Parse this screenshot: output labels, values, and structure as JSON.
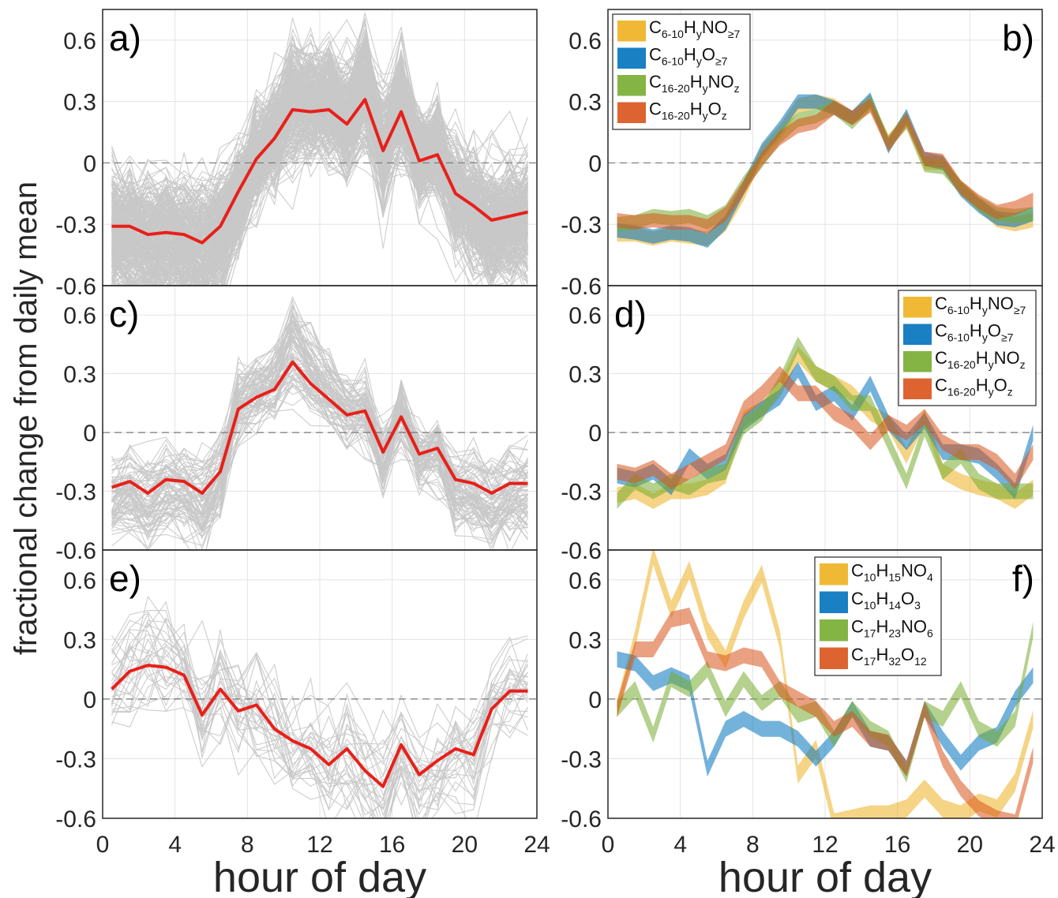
{
  "figure": {
    "ylabel": "fractional change from daily mean",
    "xlabel": "hour of day"
  },
  "axes": {
    "x_ticks": [
      "0",
      "4",
      "8",
      "12",
      "16",
      "20",
      "24"
    ],
    "y_ticks": [
      "-0.6",
      "-0.3",
      "0",
      "0.3",
      "0.6"
    ],
    "xlim": [
      0,
      24
    ],
    "ylim": [
      -0.6,
      0.75
    ]
  },
  "colors": {
    "gray": "#c8c8c8",
    "red": "#e8201a",
    "yellow": "#edb120",
    "blue": "#0072bd",
    "green": "#77ac30",
    "orange": "#d95319"
  },
  "chart_data": [
    {
      "panel": "a)",
      "type": "line",
      "x": [
        0.5,
        1.5,
        2.5,
        3.5,
        4.5,
        5.5,
        6.5,
        7.5,
        8.5,
        9.5,
        10.5,
        11.5,
        12.5,
        13.5,
        14.5,
        15.5,
        16.5,
        17.5,
        18.5,
        19.5,
        20.5,
        21.5,
        22.5,
        23.5
      ],
      "series": [
        {
          "role": "mean",
          "values": [
            -0.31,
            -0.31,
            -0.35,
            -0.34,
            -0.35,
            -0.39,
            -0.31,
            -0.14,
            0.02,
            0.12,
            0.26,
            0.25,
            0.26,
            0.19,
            0.31,
            0.06,
            0.25,
            0.01,
            0.04,
            -0.15,
            -0.21,
            -0.28,
            -0.26,
            -0.24
          ]
        },
        {
          "role": "individual traces",
          "count": 300,
          "spread": 0.18
        }
      ]
    },
    {
      "panel": "b)",
      "type": "area",
      "x": [
        0.5,
        1.5,
        2.5,
        3.5,
        4.5,
        5.5,
        6.5,
        7.5,
        8.5,
        9.5,
        10.5,
        11.5,
        12.5,
        13.5,
        14.5,
        15.5,
        16.5,
        17.5,
        18.5,
        19.5,
        20.5,
        21.5,
        22.5,
        23.5
      ],
      "legend": {
        "placement": "top-left",
        "entries": [
          {
            "text": "C6-10HyNO≥7",
            "parts": [
              [
                "C",
                ""
              ],
              [
                "6-10",
                "sub"
              ],
              [
                "H",
                ""
              ],
              [
                "y",
                "sub"
              ],
              [
                "NO",
                ""
              ],
              [
                "≥7",
                "sub"
              ]
            ]
          },
          {
            "text": "C6-10HyO≥7",
            "parts": [
              [
                "C",
                ""
              ],
              [
                "6-10",
                "sub"
              ],
              [
                "H",
                ""
              ],
              [
                "y",
                "sub"
              ],
              [
                "O",
                ""
              ],
              [
                "≥7",
                "sub"
              ]
            ]
          },
          {
            "text": "C16-20HyNOz",
            "parts": [
              [
                "C",
                ""
              ],
              [
                "16-20",
                "sub"
              ],
              [
                "H",
                ""
              ],
              [
                "y",
                "sub"
              ],
              [
                "NO",
                ""
              ],
              [
                "z",
                "sub"
              ]
            ]
          },
          {
            "text": "C16-20HyOz",
            "parts": [
              [
                "C",
                ""
              ],
              [
                "16-20",
                "sub"
              ],
              [
                "H",
                ""
              ],
              [
                "y",
                "sub"
              ],
              [
                "O",
                ""
              ],
              [
                "z",
                "sub"
              ]
            ]
          }
        ]
      },
      "series": [
        {
          "values": [
            -0.35,
            -0.35,
            -0.37,
            -0.35,
            -0.36,
            -0.37,
            -0.3,
            -0.15,
            0.05,
            0.15,
            0.28,
            0.3,
            0.28,
            0.22,
            0.3,
            0.1,
            0.22,
            0.0,
            0.0,
            -0.12,
            -0.2,
            -0.28,
            -0.3,
            -0.28
          ],
          "width": 0.07
        },
        {
          "values": [
            -0.33,
            -0.34,
            -0.36,
            -0.34,
            -0.35,
            -0.38,
            -0.29,
            -0.12,
            0.06,
            0.17,
            0.3,
            0.3,
            0.27,
            0.22,
            0.31,
            0.08,
            0.23,
            0.02,
            0.0,
            -0.13,
            -0.21,
            -0.27,
            -0.28,
            -0.25
          ],
          "width": 0.07
        },
        {
          "values": [
            -0.3,
            -0.29,
            -0.26,
            -0.27,
            -0.26,
            -0.29,
            -0.24,
            -0.1,
            0.01,
            0.13,
            0.21,
            0.23,
            0.27,
            0.2,
            0.29,
            0.1,
            0.2,
            -0.01,
            -0.02,
            -0.12,
            -0.2,
            -0.25,
            -0.26,
            -0.25
          ],
          "width": 0.07
        },
        {
          "values": [
            -0.28,
            -0.29,
            -0.28,
            -0.29,
            -0.29,
            -0.31,
            -0.25,
            -0.12,
            0.02,
            0.12,
            0.18,
            0.2,
            0.27,
            0.22,
            0.28,
            0.09,
            0.21,
            0.02,
            0.01,
            -0.12,
            -0.19,
            -0.24,
            -0.22,
            -0.18
          ],
          "width": 0.07
        }
      ]
    },
    {
      "panel": "c)",
      "type": "line",
      "x": [
        0.5,
        1.5,
        2.5,
        3.5,
        4.5,
        5.5,
        6.5,
        7.5,
        8.5,
        9.5,
        10.5,
        11.5,
        12.5,
        13.5,
        14.5,
        15.5,
        16.5,
        17.5,
        18.5,
        19.5,
        20.5,
        21.5,
        22.5,
        23.5
      ],
      "series": [
        {
          "role": "mean",
          "values": [
            -0.28,
            -0.25,
            -0.31,
            -0.24,
            -0.25,
            -0.31,
            -0.2,
            0.12,
            0.18,
            0.22,
            0.36,
            0.25,
            0.17,
            0.09,
            0.11,
            -0.1,
            0.08,
            -0.11,
            -0.08,
            -0.24,
            -0.26,
            -0.31,
            -0.26,
            -0.26
          ]
        },
        {
          "role": "individual traces",
          "count": 80,
          "spread": 0.12
        }
      ]
    },
    {
      "panel": "d)",
      "type": "area",
      "x": [
        0.5,
        1.5,
        2.5,
        3.5,
        4.5,
        5.5,
        6.5,
        7.5,
        8.5,
        9.5,
        10.5,
        11.5,
        12.5,
        13.5,
        14.5,
        15.5,
        16.5,
        17.5,
        18.5,
        19.5,
        20.5,
        21.5,
        22.5,
        23.5
      ],
      "legend": {
        "placement": "top-right",
        "entries": [
          {
            "text": "C6-10HyNO≥7",
            "parts": [
              [
                "C",
                ""
              ],
              [
                "6-10",
                "sub"
              ],
              [
                "H",
                ""
              ],
              [
                "y",
                "sub"
              ],
              [
                "NO",
                ""
              ],
              [
                "≥7",
                "sub"
              ]
            ]
          },
          {
            "text": "C6-10HyO≥7",
            "parts": [
              [
                "C",
                ""
              ],
              [
                "6-10",
                "sub"
              ],
              [
                "H",
                ""
              ],
              [
                "y",
                "sub"
              ],
              [
                "O",
                ""
              ],
              [
                "≥7",
                "sub"
              ]
            ]
          },
          {
            "text": "C16-20HyNOz",
            "parts": [
              [
                "C",
                ""
              ],
              [
                "16-20",
                "sub"
              ],
              [
                "H",
                ""
              ],
              [
                "y",
                "sub"
              ],
              [
                "NO",
                ""
              ],
              [
                "z",
                "sub"
              ]
            ]
          },
          {
            "text": "C16-20HyOz",
            "parts": [
              [
                "C",
                ""
              ],
              [
                "16-20",
                "sub"
              ],
              [
                "H",
                ""
              ],
              [
                "y",
                "sub"
              ],
              [
                "O",
                ""
              ],
              [
                "z",
                "sub"
              ]
            ]
          }
        ]
      },
      "series": [
        {
          "values": [
            -0.32,
            -0.3,
            -0.35,
            -0.3,
            -0.3,
            -0.28,
            -0.22,
            0.07,
            0.12,
            0.22,
            0.4,
            0.3,
            0.25,
            0.2,
            0.1,
            0.05,
            -0.12,
            0.08,
            -0.2,
            -0.25,
            -0.28,
            -0.3,
            -0.35,
            -0.28
          ],
          "width": 0.08
        },
        {
          "values": [
            -0.22,
            -0.24,
            -0.2,
            -0.28,
            -0.12,
            -0.2,
            -0.15,
            0.05,
            0.12,
            0.18,
            0.32,
            0.15,
            0.2,
            0.1,
            0.25,
            0.05,
            -0.05,
            0.06,
            -0.1,
            -0.1,
            -0.12,
            -0.2,
            -0.3,
            0.0
          ],
          "width": 0.08
        },
        {
          "values": [
            -0.35,
            -0.25,
            -0.3,
            -0.25,
            -0.28,
            -0.22,
            -0.2,
            0.03,
            0.1,
            0.25,
            0.45,
            0.3,
            0.25,
            0.15,
            0.15,
            -0.05,
            -0.25,
            0.02,
            -0.2,
            -0.12,
            -0.25,
            -0.3,
            -0.3,
            -0.3
          ],
          "width": 0.08
        },
        {
          "values": [
            -0.2,
            -0.22,
            -0.18,
            -0.25,
            -0.2,
            -0.15,
            -0.1,
            0.12,
            0.2,
            0.3,
            0.2,
            0.2,
            0.1,
            0.05,
            -0.05,
            0.05,
            0.0,
            0.08,
            -0.05,
            -0.1,
            -0.1,
            -0.15,
            -0.25,
            -0.1
          ],
          "width": 0.08
        }
      ]
    },
    {
      "panel": "e)",
      "type": "line",
      "x": [
        0.5,
        1.5,
        2.5,
        3.5,
        4.5,
        5.5,
        6.5,
        7.5,
        8.5,
        9.5,
        10.5,
        11.5,
        12.5,
        13.5,
        14.5,
        15.5,
        16.5,
        17.5,
        18.5,
        19.5,
        20.5,
        21.5,
        22.5,
        23.5
      ],
      "series": [
        {
          "role": "mean",
          "values": [
            0.05,
            0.14,
            0.17,
            0.16,
            0.12,
            -0.08,
            0.05,
            -0.06,
            -0.03,
            -0.15,
            -0.21,
            -0.25,
            -0.33,
            -0.25,
            -0.36,
            -0.44,
            -0.23,
            -0.38,
            -0.31,
            -0.25,
            -0.28,
            -0.05,
            0.04,
            0.04
          ]
        },
        {
          "role": "individual traces",
          "count": 30,
          "spread": 0.2
        }
      ]
    },
    {
      "panel": "f)",
      "type": "area",
      "x": [
        0.5,
        1.5,
        2.5,
        3.5,
        4.5,
        5.5,
        6.5,
        7.5,
        8.5,
        9.5,
        10.5,
        11.5,
        12.5,
        13.5,
        14.5,
        15.5,
        16.5,
        17.5,
        18.5,
        19.5,
        20.5,
        21.5,
        22.5,
        23.5
      ],
      "legend": {
        "placement": "top-right",
        "entries": [
          {
            "text": "C10H15NO4",
            "parts": [
              [
                "C",
                ""
              ],
              [
                "10",
                "sub"
              ],
              [
                "H",
                ""
              ],
              [
                "15",
                "sub"
              ],
              [
                "NO",
                ""
              ],
              [
                "4",
                "sub"
              ]
            ]
          },
          {
            "text": "C10H14O3",
            "parts": [
              [
                "C",
                ""
              ],
              [
                "10",
                "sub"
              ],
              [
                "H",
                ""
              ],
              [
                "14",
                "sub"
              ],
              [
                "O",
                ""
              ],
              [
                "3",
                "sub"
              ]
            ]
          },
          {
            "text": "C17H23NO6",
            "parts": [
              [
                "C",
                ""
              ],
              [
                "17",
                "sub"
              ],
              [
                "H",
                ""
              ],
              [
                "23",
                "sub"
              ],
              [
                "NO",
                ""
              ],
              [
                "6",
                "sub"
              ]
            ]
          },
          {
            "text": "C17H32O12",
            "parts": [
              [
                "C",
                ""
              ],
              [
                "17",
                "sub"
              ],
              [
                "H",
                ""
              ],
              [
                "32",
                "sub"
              ],
              [
                "O",
                ""
              ],
              [
                "12",
                "sub"
              ]
            ]
          }
        ]
      },
      "series": [
        {
          "values": [
            -0.05,
            0.3,
            0.72,
            0.45,
            0.65,
            0.35,
            0.2,
            0.45,
            0.63,
            0.3,
            -0.38,
            -0.25,
            -0.62,
            -0.6,
            -0.58,
            -0.58,
            -0.55,
            -0.45,
            -0.55,
            -0.58,
            -0.52,
            -0.55,
            -0.42,
            -0.1
          ],
          "width": 0.09
        },
        {
          "values": [
            0.2,
            0.18,
            0.08,
            0.12,
            0.08,
            -0.35,
            -0.15,
            -0.1,
            -0.15,
            -0.15,
            -0.2,
            -0.3,
            -0.2,
            -0.05,
            -0.2,
            -0.22,
            -0.35,
            -0.05,
            -0.2,
            -0.32,
            -0.22,
            -0.18,
            0.0,
            0.12
          ],
          "width": 0.08
        },
        {
          "values": [
            -0.05,
            0.05,
            -0.18,
            0.1,
            0.05,
            0.15,
            -0.05,
            0.1,
            -0.02,
            0.05,
            -0.08,
            -0.05,
            -0.2,
            -0.05,
            -0.15,
            -0.2,
            -0.38,
            -0.05,
            -0.1,
            0.05,
            -0.15,
            -0.2,
            -0.1,
            0.35
          ],
          "width": 0.08
        },
        {
          "values": [
            -0.05,
            0.25,
            0.25,
            0.4,
            0.42,
            0.2,
            0.18,
            0.22,
            0.2,
            0.05,
            0.0,
            -0.05,
            -0.15,
            -0.1,
            -0.2,
            -0.22,
            -0.35,
            -0.05,
            -0.3,
            -0.45,
            -0.55,
            -0.6,
            -0.62,
            -0.28
          ],
          "width": 0.08
        }
      ]
    }
  ]
}
